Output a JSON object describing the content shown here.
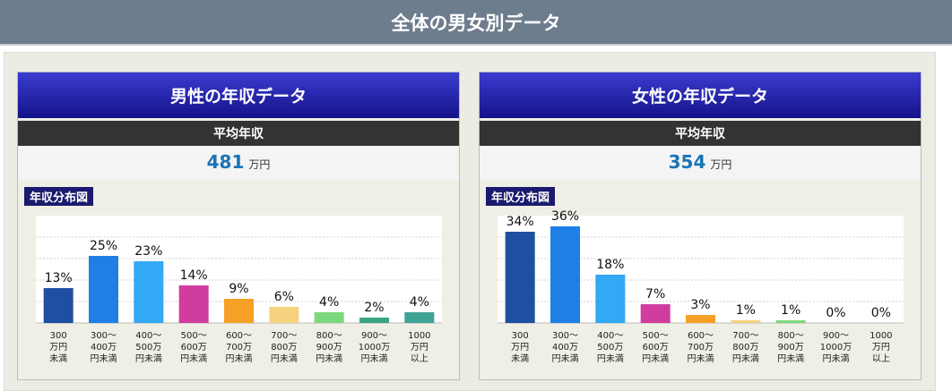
{
  "header": {
    "title": "全体の男女別データ"
  },
  "male": {
    "title": "男性の年収データ",
    "avg_label": "平均年収",
    "avg_value": "481",
    "avg_unit": "万円",
    "dist_label": "年収分布図"
  },
  "female": {
    "title": "女性の年収データ",
    "avg_label": "平均年収",
    "avg_value": "354",
    "avg_unit": "万円",
    "dist_label": "年収分布図"
  },
  "chart_data": [
    {
      "type": "bar",
      "title": "",
      "categories": [
        [
          "300",
          "万円",
          "未満"
        ],
        [
          "300〜",
          "400万",
          "円未満"
        ],
        [
          "400〜",
          "500万",
          "円未満"
        ],
        [
          "500〜",
          "600万",
          "円未満"
        ],
        [
          "600〜",
          "700万",
          "円未満"
        ],
        [
          "700〜",
          "800万",
          "円未満"
        ],
        [
          "800〜",
          "900万",
          "円未満"
        ],
        [
          "900〜",
          "1000万",
          "円未満"
        ],
        [
          "1000",
          "万円",
          "以上"
        ]
      ],
      "values": [
        13,
        25,
        23,
        14,
        9,
        6,
        4,
        2,
        4
      ],
      "value_labels": [
        "13%",
        "25%",
        "23%",
        "14%",
        "9%",
        "6%",
        "4%",
        "2%",
        "4%"
      ],
      "colors": [
        "#1f4fa0",
        "#1e7fe6",
        "#33a8f4",
        "#d13c9f",
        "#f6a025",
        "#f6d27e",
        "#7cd87c",
        "#39a383",
        "#3fa394"
      ],
      "ylim": [
        0,
        40
      ],
      "grid": true
    },
    {
      "type": "bar",
      "title": "",
      "categories": [
        [
          "300",
          "万円",
          "未満"
        ],
        [
          "300〜",
          "400万",
          "円未満"
        ],
        [
          "400〜",
          "500万",
          "円未満"
        ],
        [
          "500〜",
          "600万",
          "円未満"
        ],
        [
          "600〜",
          "700万",
          "円未満"
        ],
        [
          "700〜",
          "800万",
          "円未満"
        ],
        [
          "800〜",
          "900万",
          "円未満"
        ],
        [
          "900〜",
          "1000万",
          "円未満"
        ],
        [
          "1000",
          "万円",
          "以上"
        ]
      ],
      "values": [
        34,
        36,
        18,
        7,
        3,
        1,
        1,
        0,
        0
      ],
      "value_labels": [
        "34%",
        "36%",
        "18%",
        "7%",
        "3%",
        "1%",
        "1%",
        "0%",
        "0%"
      ],
      "colors": [
        "#1f4fa0",
        "#1e7fe6",
        "#33a8f4",
        "#d13c9f",
        "#f6a025",
        "#f6d27e",
        "#7cd87c",
        "#39a383",
        "#3fa394"
      ],
      "ylim": [
        0,
        40
      ],
      "grid": true
    }
  ]
}
